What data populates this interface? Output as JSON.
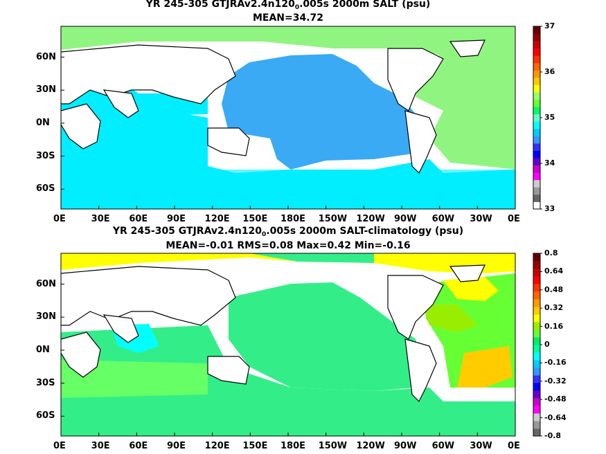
{
  "chart_data": [
    {
      "type": "heatmap",
      "title_prefix": "YR 245-305 GTJRAv2.4n120",
      "title_sub": "0",
      "title_suffix": ".005s 2000m SALT (psu)",
      "subtitle": "MEAN=34.72",
      "x_ticks": [
        "0E",
        "30E",
        "60E",
        "90E",
        "120E",
        "150E",
        "180E",
        "150W",
        "120W",
        "90W",
        "60W",
        "30W",
        "0E"
      ],
      "y_ticks": [
        "60N",
        "30N",
        "0N",
        "30S",
        "60S"
      ],
      "colorbar_labels": [
        "37",
        "36",
        "35",
        "34",
        "33"
      ],
      "colorbar_colors": [
        "#ffffff",
        "#666666",
        "#999999",
        "#cccccc",
        "#ff00ff",
        "#cc00cc",
        "#6600cc",
        "#0000ff",
        "#3333ff",
        "#3399ff",
        "#00ccff",
        "#00ffff",
        "#66ffcc",
        "#00ff66",
        "#66ff33",
        "#99ff66",
        "#ffff00",
        "#ffcc00",
        "#ff9900",
        "#ff6600",
        "#ff3300",
        "#ff0000",
        "#cc0000",
        "#990000",
        "#660000"
      ],
      "ocean_dominant": "#00c8ff",
      "pacific_color": "#3aaaf5",
      "atlantic_color": "#90f580",
      "arctic_color": "#90f580"
    },
    {
      "type": "heatmap",
      "title_prefix": "YR 245-305 GTJRAv2.4n120",
      "title_sub": "0",
      "title_suffix": ".005s 2000m SALT-climatology (psu)",
      "subtitle": "MEAN=-0.01   RMS=0.08   Max=0.42   Min=-0.16",
      "x_ticks": [
        "0E",
        "30E",
        "60E",
        "90E",
        "120E",
        "150E",
        "180E",
        "150W",
        "120W",
        "90W",
        "60W",
        "30W",
        "0E"
      ],
      "y_ticks": [
        "60N",
        "30N",
        "0N",
        "30S",
        "60S"
      ],
      "colorbar_labels": [
        "0.8",
        "0.64",
        "0.48",
        "0.32",
        "0.16",
        "0",
        "-0.16",
        "-0.32",
        "-0.48",
        "-0.64",
        "-0.8"
      ],
      "colorbar_colors": [
        "#666666",
        "#999999",
        "#cccccc",
        "#ff00ff",
        "#cc00cc",
        "#6600cc",
        "#0000ff",
        "#3333ff",
        "#3399ff",
        "#00ccff",
        "#00ffff",
        "#00ff99",
        "#00ee66",
        "#66ff33",
        "#99ee00",
        "#ffff00",
        "#ffcc00",
        "#ff9900",
        "#ff6600",
        "#ff3300",
        "#ff0000",
        "#cc0000",
        "#990000",
        "#660000"
      ],
      "ocean_dominant": "#00ee80",
      "atlantic_color": "#ffff00",
      "southern_color": "#66ff33"
    }
  ]
}
